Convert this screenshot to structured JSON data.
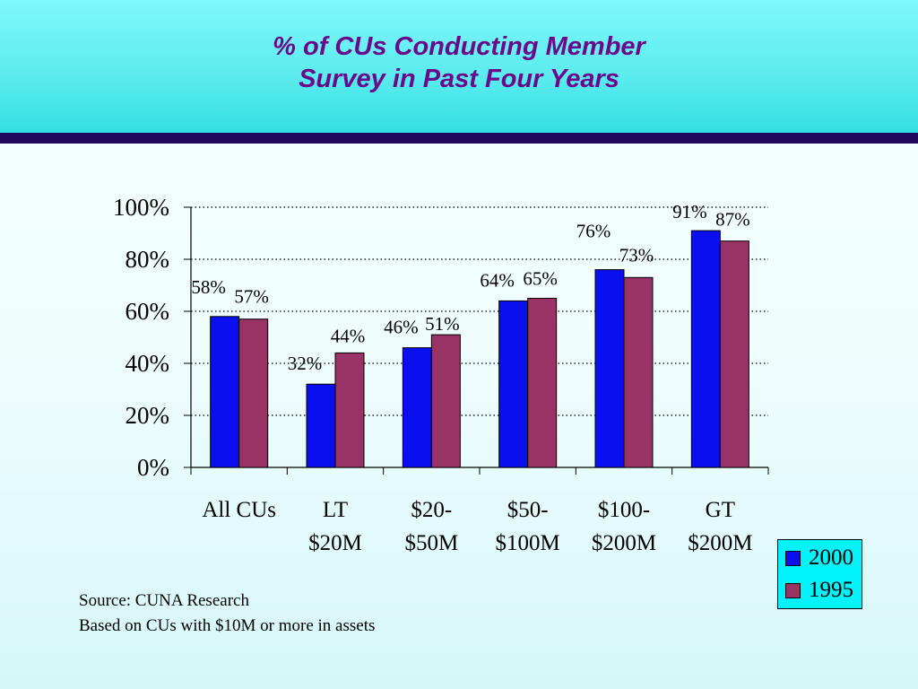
{
  "title": {
    "line1": "% of CUs Conducting Member",
    "line2": "Survey in Past Four Years"
  },
  "chart_data": {
    "type": "bar",
    "categories": [
      [
        "All CUs",
        ""
      ],
      [
        "LT",
        "$20M"
      ],
      [
        "$20-",
        "$50M"
      ],
      [
        "$50-",
        "$100M"
      ],
      [
        "$100-",
        "$200M"
      ],
      [
        "GT",
        "$200M"
      ]
    ],
    "series": [
      {
        "name": "2000",
        "values": [
          58,
          32,
          46,
          64,
          76,
          91
        ],
        "labels": [
          "58%",
          "32%",
          "46%",
          "64%",
          "76%",
          "91%"
        ],
        "color": "#0a0ff0"
      },
      {
        "name": "1995",
        "values": [
          57,
          44,
          51,
          65,
          73,
          87
        ],
        "labels": [
          "57%",
          "44%",
          "51%",
          "65%",
          "73%",
          "87%"
        ],
        "color": "#993366"
      }
    ],
    "yticks": [
      "0%",
      "20%",
      "40%",
      "60%",
      "80%",
      "100%"
    ],
    "ylim": [
      0,
      100
    ],
    "grid": true,
    "legend_position": "bottom-right"
  },
  "source": {
    "line1": "Source:  CUNA Research",
    "line2": "Based on CUs with $10M or more in assets"
  }
}
